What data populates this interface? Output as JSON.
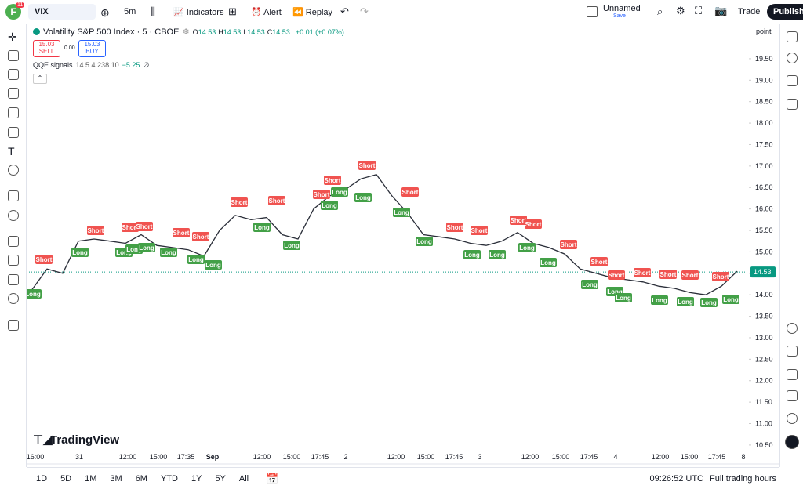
{
  "toolbar": {
    "badge": "11",
    "symbol": "VIX",
    "interval": "5m",
    "indicators": "Indicators",
    "alert": "Alert",
    "replay": "Replay",
    "layout_name": "Unnamed",
    "layout_status": "Save",
    "trade": "Trade",
    "publish": "Publish"
  },
  "legend": {
    "title": "Volatility S&P 500 Index · 5 · CBOE",
    "ohlc": [
      {
        "label": "O",
        "value": "14.53"
      },
      {
        "label": "H",
        "value": "14.53"
      },
      {
        "label": "L",
        "value": "14.53"
      },
      {
        "label": "C",
        "value": "14.53"
      }
    ],
    "change": "+0.01 (+0.07%)",
    "sell": {
      "price": "15.03",
      "label": "SELL"
    },
    "spread": "0.00",
    "buy": {
      "price": "15.03",
      "label": "BUY"
    },
    "indicator": {
      "name": "QQE signals",
      "params": "14 5 4.238 10",
      "value": "−5.25",
      "extra": "∅"
    }
  },
  "chart_data": {
    "type": "line",
    "scale_mode": "point",
    "watermark": "TradingView",
    "ylim": [
      10.06,
      20.32
    ],
    "yticks": [
      {
        "value": 10.5,
        "label": "10.50"
      },
      {
        "value": 11,
        "label": "11.00"
      },
      {
        "value": 11.5,
        "label": "11.50"
      },
      {
        "value": 12,
        "label": "12.00"
      },
      {
        "value": 12.5,
        "label": "12.50"
      },
      {
        "value": 13,
        "label": "13.00"
      },
      {
        "value": 13.5,
        "label": "13.50"
      },
      {
        "value": 14,
        "label": "14.00"
      },
      {
        "value": 14.5,
        "label": "14.50"
      },
      {
        "value": 15,
        "label": "15.00"
      },
      {
        "value": 15.5,
        "label": "15.50"
      },
      {
        "value": 16,
        "label": "16.00"
      },
      {
        "value": 16.5,
        "label": "16.50"
      },
      {
        "value": 17,
        "label": "17.00"
      },
      {
        "value": 17.5,
        "label": "17.50"
      },
      {
        "value": 18,
        "label": "18.00"
      },
      {
        "value": 18.5,
        "label": "18.50"
      },
      {
        "value": 19,
        "label": "19.00"
      },
      {
        "value": 19.5,
        "label": "19.50"
      }
    ],
    "xtick_labels": [
      "16:00",
      "31",
      "12:00",
      "15:00",
      "17:35",
      "Sep",
      "12:00",
      "15:00",
      "17:45",
      "2",
      "12:00",
      "15:00",
      "17:45",
      "3",
      "12:00",
      "15:00",
      "17:45",
      "4",
      "12:00",
      "15:00",
      "17:45",
      "8"
    ],
    "series": [
      {
        "name": "VIX",
        "color": "#2a2e39",
        "values": [
          14.1,
          14.6,
          14.5,
          15.25,
          15.3,
          15.25,
          15.2,
          15.4,
          15.15,
          15.1,
          15.05,
          14.9,
          15.5,
          15.85,
          15.75,
          15.8,
          15.4,
          15.3,
          16.0,
          16.3,
          16.45,
          16.7,
          16.8,
          16.3,
          15.9,
          15.4,
          15.35,
          15.3,
          15.2,
          15.15,
          15.25,
          15.45,
          15.2,
          15.1,
          14.95,
          14.6,
          14.5,
          14.4,
          14.35,
          14.3,
          14.2,
          14.15,
          14.05,
          14.0,
          14.2,
          14.55
        ]
      }
    ],
    "last_price": 14.53,
    "signals": [
      "Short",
      "Long",
      "Short",
      "Long",
      "Short",
      "Long",
      "Short",
      "Long",
      "Long",
      "Short",
      "Long",
      "Short",
      "Long",
      "Long",
      "Short",
      "Long",
      "Short",
      "Long",
      "Short",
      "Long",
      "Short",
      "Long",
      "Short",
      "Long",
      "Short",
      "Long",
      "Long",
      "Short",
      "Long",
      "Short",
      "Long",
      "Short",
      "Short",
      "Long",
      "Long",
      "Short",
      "Short",
      "Long",
      "Short",
      "Long",
      "Long",
      "Short",
      "Short",
      "Long",
      "Short",
      "Long",
      "Long",
      "Short",
      "Long"
    ]
  },
  "bottom": {
    "ranges": [
      "1D",
      "5D",
      "1M",
      "3M",
      "6M",
      "YTD",
      "1Y",
      "5Y",
      "All"
    ],
    "clock": "09:26:52 UTC",
    "session": "Full trading hours"
  }
}
